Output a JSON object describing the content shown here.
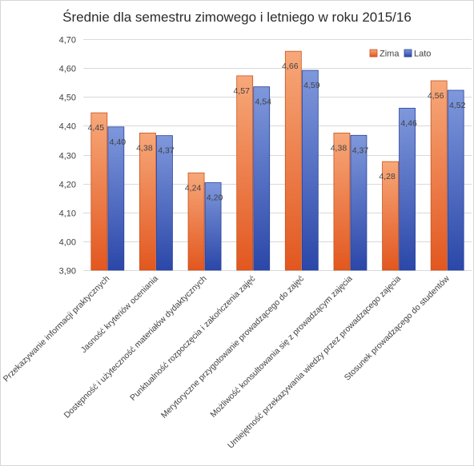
{
  "chart_data": {
    "type": "bar",
    "title": "Średnie  dla semestru  zimowego  i letniego  w roku 2015/16",
    "ylim": [
      3.9,
      4.7
    ],
    "ytick_step": 0.1,
    "yticks": [
      "3,90",
      "4,00",
      "4,10",
      "4,20",
      "4,30",
      "4,40",
      "4,50",
      "4,60",
      "4,70"
    ],
    "grid": true,
    "legend_position": "top-right",
    "categories": [
      "Przekazywanie informacji praktycznych",
      "Jasność kryteriów oceniania",
      "Dostępność i użyteczność materiałów dydaktycznych",
      "Punktualność rozpoczęcia i zakończenia zajęć",
      "Merytoryczne przygotowanie prowadzącego do zajęć",
      "Możliwość konsultowania się z prowadzącym zajęcia",
      "Umiejętność przekazywania wiedzy przez prowadzącego zajęcia",
      "Stosunek prowadzącego do studentów"
    ],
    "series": [
      {
        "name": "Zima",
        "color": "#ee7d44",
        "values": [
          4.445,
          4.375,
          4.237,
          4.573,
          4.658,
          4.375,
          4.276,
          4.556
        ],
        "labels": [
          "4,45",
          "4,38",
          "4,24",
          "4,57",
          "4,66",
          "4,38",
          "4,28",
          "4,56"
        ]
      },
      {
        "name": "Lato",
        "color": "#4a67c2",
        "values": [
          4.396,
          4.366,
          4.203,
          4.535,
          4.592,
          4.367,
          4.461,
          4.523
        ],
        "labels": [
          "4,40",
          "4,37",
          "4,20",
          "4,54",
          "4,59",
          "4,37",
          "4,46",
          "4,52"
        ]
      }
    ]
  }
}
